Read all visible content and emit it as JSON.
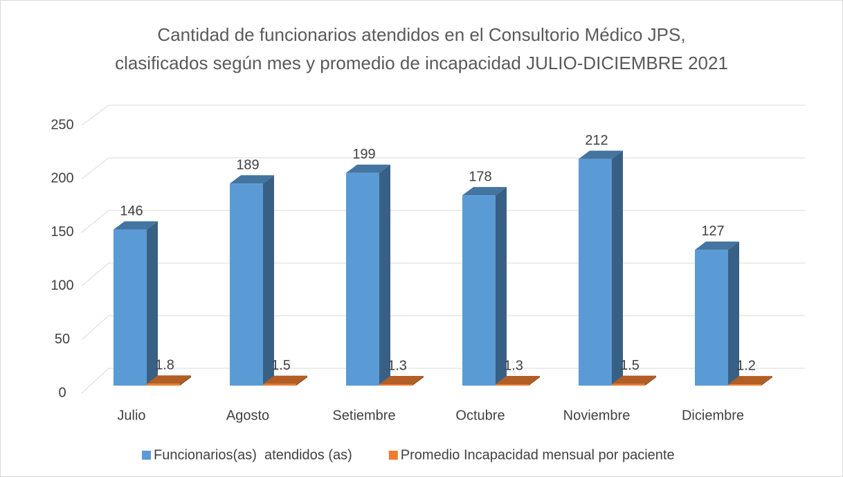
{
  "chart_data": {
    "type": "bar",
    "title": [
      "Cantidad de funcionarios atendidos en el Consultorio Médico JPS,",
      "clasificados según mes y promedio de incapacidad JULIO-DICIEMBRE 2021"
    ],
    "categories": [
      "Julio",
      "Agosto",
      "Setiembre",
      "Octubre",
      "Noviembre",
      "Diciembre"
    ],
    "series": [
      {
        "name": "Funcionarios(as)  atendidos (as)",
        "color": "#5b9bd5",
        "values": [
          146,
          189,
          199,
          178,
          212,
          127
        ]
      },
      {
        "name": "Promedio Incapacidad mensual por paciente",
        "color": "#ed7d31",
        "values": [
          1.8,
          1.5,
          1.3,
          1.3,
          1.5,
          1.2
        ]
      }
    ],
    "ylim": [
      0,
      250
    ],
    "yticks": [
      0,
      50,
      100,
      150,
      200,
      250
    ],
    "grid": true,
    "legend": "bottom"
  }
}
